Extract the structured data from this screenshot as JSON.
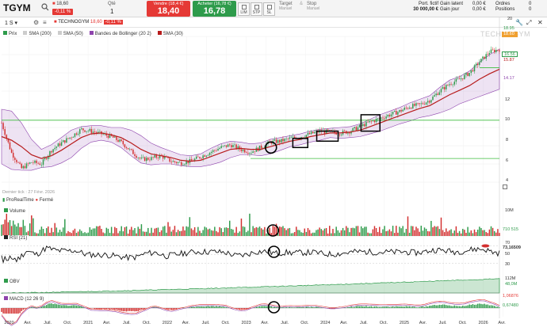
{
  "header": {
    "symbol": "TGYM",
    "ticker_price": "18,60",
    "change": "-0,11 %",
    "qty_label": "Qté",
    "qty_value": "1",
    "sell_label": "Vendre (18,4 €)",
    "sell_value": "18,40",
    "buy_label": "Acheter (16,78 €)",
    "buy_value": "16,78",
    "order_types": [
      "LIM",
      "STP",
      "SL"
    ],
    "target_label": "Target",
    "target_sub": "Manuel",
    "stop_label": "Stop",
    "stop_sub": "Manuel",
    "account": {
      "port_label": "Port. fictif",
      "port_value": "30 000,00 €",
      "latent_label": "Gain latent",
      "latent_value": "0,00 €",
      "day_label": "Gain jour",
      "day_value": "0,00 €",
      "orders_label": "Ordres",
      "orders_value": "0",
      "positions_label": "Positions",
      "positions_value": "0"
    },
    "colors": {
      "sell": "#e53935",
      "buy": "#2e9b4b"
    }
  },
  "toolbar": {
    "interval": "1 S",
    "name_price": "18,60",
    "name_change": "-0,11 %",
    "name": "TECHNOGYM"
  },
  "legend": [
    {
      "label": "Prix",
      "color": "#2e9b4b"
    },
    {
      "label": "SMA (200)",
      "color": "#bbbbbb"
    },
    {
      "label": "SMA (50)",
      "color": "#bbbbbb"
    },
    {
      "label": "Bandes de Bollinger (20 2)",
      "color": "#8e44ad"
    },
    {
      "label": "SMA (30)",
      "color": "#b71c1c"
    }
  ],
  "watermark": "TECHNOGYM",
  "last_tick": "Dernier tick : 27 Févr. 2026",
  "pro_realtime": "ProRealTime",
  "market_status": "Fermé",
  "price_axis": [
    "20",
    "18.95",
    "17.98",
    "14.17",
    "12",
    "10",
    "8",
    "6",
    "4"
  ],
  "price_tags": [
    {
      "label": "18.60",
      "color": "#f0a030",
      "text": "#fff"
    },
    {
      "label": "16.56",
      "color": "#ffffff",
      "text": "#2e9b4b"
    },
    {
      "label": "15.87",
      "color": "#ffffff",
      "text": "#b71c1c"
    },
    {
      "label": "14.17",
      "color": "#ffffff",
      "text": "#8e44ad"
    }
  ],
  "panels": {
    "volume": {
      "label": "Volume",
      "max": "10M",
      "last": "710 515"
    },
    "rsi": {
      "label": "RSI (21)",
      "levels": [
        "70",
        "50",
        "30"
      ],
      "last": "73,16509"
    },
    "obv": {
      "label": "OBV",
      "max": "112M",
      "last": "48,0M"
    },
    "macd": {
      "label": "MACD (12 26 9)",
      "v1": "1,06876",
      "v2": "0,67480"
    }
  },
  "x_labels": [
    "2020",
    "Avr.",
    "Juil.",
    "Oct.",
    "2021",
    "Avr.",
    "Juil.",
    "Oct.",
    "2022",
    "Avr.",
    "Juil.",
    "Oct.",
    "2023",
    "Avr.",
    "Juil.",
    "Oct.",
    "2024",
    "Avr.",
    "Juil.",
    "Oct.",
    "2025",
    "Avr.",
    "Juil.",
    "Oct.",
    "2026",
    "Avr."
  ],
  "chart_data": {
    "type": "line",
    "symbol": "TGYM",
    "ylim": [
      4,
      20
    ],
    "price_x": [
      0,
      0.02,
      0.04,
      0.06,
      0.08,
      0.1,
      0.12,
      0.14,
      0.16,
      0.18,
      0.2,
      0.22,
      0.24,
      0.26,
      0.28,
      0.3,
      0.32,
      0.34,
      0.36,
      0.38,
      0.4,
      0.42,
      0.44,
      0.46,
      0.48,
      0.5,
      0.52,
      0.54,
      0.56,
      0.58,
      0.6,
      0.62,
      0.64,
      0.66,
      0.68,
      0.7,
      0.72,
      0.74,
      0.76,
      0.78,
      0.8,
      0.82,
      0.84,
      0.86,
      0.88,
      0.9,
      0.92,
      0.94,
      0.96,
      0.98,
      1.0
    ],
    "price_y": [
      10.5,
      7.2,
      5.5,
      6.2,
      6.0,
      7.5,
      8.3,
      9.0,
      9.8,
      9.6,
      9.3,
      9.0,
      8.4,
      7.4,
      6.5,
      6.6,
      6.9,
      6.3,
      6.1,
      6.3,
      6.8,
      7.3,
      7.8,
      8.1,
      7.6,
      7.3,
      7.8,
      8.4,
      8.5,
      8.8,
      9.0,
      9.3,
      9.6,
      9.5,
      9.4,
      9.6,
      10.1,
      10.6,
      11.0,
      11.4,
      11.8,
      12.3,
      12.5,
      13.0,
      14.0,
      14.8,
      15.3,
      16.0,
      17.2,
      18.3,
      18.6
    ],
    "sma30_y": [
      9.0,
      8.6,
      7.9,
      7.0,
      6.6,
      6.9,
      7.5,
      8.2,
      8.9,
      9.3,
      9.4,
      9.2,
      8.9,
      8.3,
      7.6,
      7.1,
      6.9,
      6.7,
      6.4,
      6.3,
      6.4,
      6.8,
      7.2,
      7.6,
      7.7,
      7.6,
      7.6,
      7.9,
      8.2,
      8.5,
      8.7,
      9.0,
      9.2,
      9.4,
      9.4,
      9.5,
      9.7,
      10.1,
      10.5,
      10.9,
      11.3,
      11.7,
      12.1,
      12.4,
      13.0,
      13.6,
      14.1,
      14.6,
      15.3,
      15.9,
      16.4
    ],
    "bb_width": [
      3.0,
      3.2,
      2.6,
      1.7,
      1.0,
      1.2,
      1.4,
      1.5,
      1.2,
      0.9,
      0.8,
      0.8,
      1.1,
      1.4,
      1.5,
      1.2,
      0.9,
      0.7,
      0.6,
      0.6,
      0.7,
      0.9,
      1.0,
      0.9,
      0.7,
      0.6,
      0.7,
      0.8,
      0.7,
      0.6,
      0.6,
      0.6,
      0.6,
      0.5,
      0.6,
      0.6,
      0.7,
      0.8,
      0.9,
      0.9,
      0.9,
      1.0,
      1.0,
      1.1,
      1.4,
      1.6,
      1.5,
      1.6,
      1.9,
      2.1,
      2.2
    ],
    "support_lines": [
      10.8,
      6.6,
      16.56
    ],
    "boxes": [
      {
        "x0": 0.585,
        "x1": 0.615,
        "y0": 7.8,
        "y1": 8.8
      },
      {
        "x0": 0.633,
        "x1": 0.676,
        "y0": 8.5,
        "y1": 9.6
      },
      {
        "x0": 0.722,
        "x1": 0.76,
        "y0": 9.6,
        "y1": 11.4
      }
    ],
    "circles": [
      {
        "panel": "price",
        "x": 0.541,
        "y": 7.8
      },
      {
        "panel": "volume",
        "x": 0.545,
        "y": 0.5
      },
      {
        "panel": "rsi",
        "x": 0.547,
        "y": 0.5
      },
      {
        "panel": "macd",
        "x": 0.547,
        "y": 0.5
      }
    ]
  }
}
